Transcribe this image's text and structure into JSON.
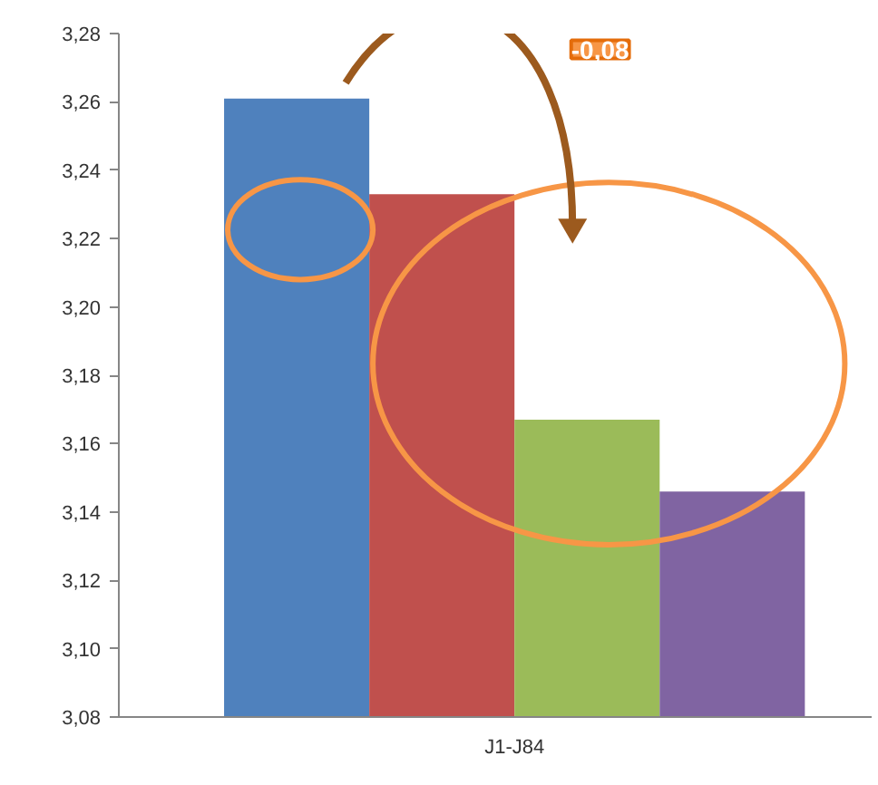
{
  "chart_data": {
    "type": "bar",
    "categories": [
      "J1-J84"
    ],
    "series": [
      {
        "color": "#4f81bd",
        "values": [
          3.261
        ]
      },
      {
        "color": "#c0504d",
        "values": [
          3.233
        ]
      },
      {
        "color": "#9bbb59",
        "values": [
          3.167
        ]
      },
      {
        "color": "#8064a2",
        "values": [
          3.146
        ]
      }
    ],
    "ylim": [
      3.08,
      3.28
    ],
    "yticks": [
      {
        "value": 3.08,
        "label": "3,08"
      },
      {
        "value": 3.1,
        "label": "3,10"
      },
      {
        "value": 3.12,
        "label": "3,12"
      },
      {
        "value": 3.14,
        "label": "3,14"
      },
      {
        "value": 3.16,
        "label": "3,16"
      },
      {
        "value": 3.18,
        "label": "3,18"
      },
      {
        "value": 3.2,
        "label": "3,20"
      },
      {
        "value": 3.22,
        "label": "3,22"
      },
      {
        "value": 3.24,
        "label": "3,24"
      },
      {
        "value": 3.26,
        "label": "3,26"
      },
      {
        "value": 3.28,
        "label": "3,28"
      }
    ],
    "annotations": [
      "-0,08"
    ]
  }
}
